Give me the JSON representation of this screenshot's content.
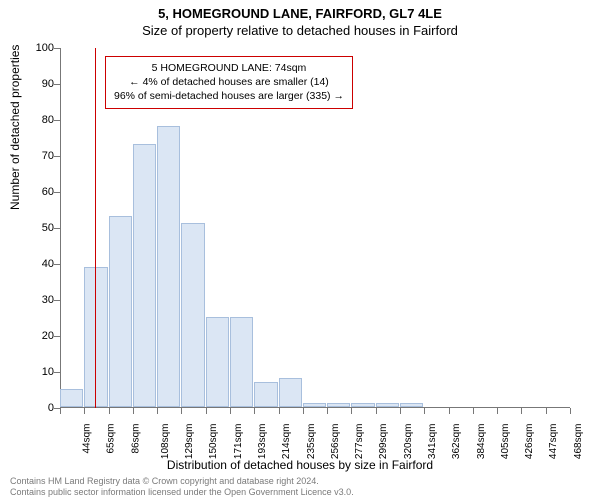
{
  "titles": {
    "main": "5, HOMEGROUND LANE, FAIRFORD, GL7 4LE",
    "sub": "Size of property relative to detached houses in Fairford"
  },
  "chart": {
    "type": "histogram",
    "y_axis": {
      "title": "Number of detached properties",
      "min": 0,
      "max": 100,
      "ticks": [
        0,
        10,
        20,
        30,
        40,
        50,
        60,
        70,
        80,
        90,
        100
      ]
    },
    "x_axis": {
      "title": "Distribution of detached houses by size in Fairford",
      "unit": "sqm",
      "categories": [
        44,
        65,
        86,
        108,
        129,
        150,
        171,
        193,
        214,
        235,
        256,
        277,
        299,
        320,
        341,
        362,
        384,
        405,
        426,
        447,
        468
      ],
      "label_rotation_deg": -90
    },
    "bars": {
      "values": [
        5,
        39,
        53,
        73,
        78,
        51,
        25,
        25,
        7,
        8,
        1,
        1,
        1,
        1,
        1,
        0,
        0,
        0,
        0,
        0,
        0
      ],
      "fill_color": "#dbe6f4",
      "border_color": "#a8bfdd",
      "bar_width_ratio": 1.0
    },
    "marker": {
      "value_sqm": 74,
      "line_color": "#cc0000"
    },
    "annotation": {
      "lines": [
        "5 HOMEGROUND LANE: 74sqm",
        "← 4% of detached houses are smaller (14)",
        "96% of semi-detached houses are larger (335) →"
      ],
      "border_color": "#cc0000",
      "background_color": "#ffffff"
    },
    "plot_background": "#ffffff",
    "axis_color": "#777777"
  },
  "footer": {
    "line1": "Contains HM Land Registry data © Crown copyright and database right 2024.",
    "line2": "Contains public sector information licensed under the Open Government Licence v3.0."
  }
}
